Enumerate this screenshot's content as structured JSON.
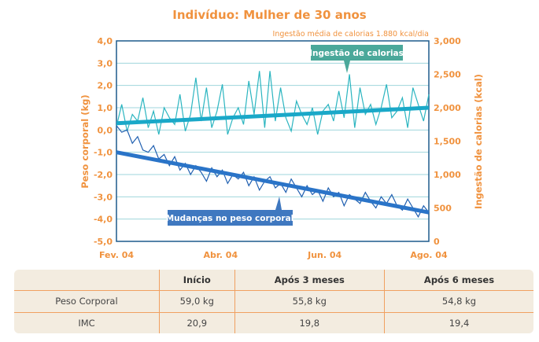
{
  "chart_data": {
    "type": "line",
    "title": "Indivíduo: Mulher de 30 anos",
    "subtitle": "Ingestão média de calorias 1.880 kcal/dia",
    "ylabel": "Peso corporal (kg)",
    "y2label": "Ingestão de calorias (kcal)",
    "ylim": [
      -5,
      4
    ],
    "y2lim": [
      0,
      3000
    ],
    "yticks": [
      "4,0",
      "3,0",
      "2,0",
      "1,0",
      "0,0",
      "-1,0",
      "-2,0",
      "-3,0",
      "-4,0",
      "-5,0"
    ],
    "y2ticks": [
      "3,000",
      "2,500",
      "2,000",
      "1,500",
      "1,000",
      "500",
      "0"
    ],
    "xticks": [
      "Fev. 04",
      "Abr. 04",
      "Jun. 04",
      "Ago. 04"
    ],
    "grid": true,
    "colors": {
      "calories": "#2bb5c0",
      "weight": "#1f5fb0",
      "calories_trend": "#1aa8c8",
      "weight_trend": "#2a74c8",
      "calorie_label_bg": "#4aa89a",
      "weight_label_bg": "#3f78c0",
      "axis_text": "#f0923e"
    },
    "series": [
      {
        "name": "Ingestão de calorias",
        "axis": "right",
        "values": [
          1720,
          2050,
          1650,
          1900,
          1800,
          2150,
          1700,
          1950,
          1600,
          2000,
          1850,
          1750,
          2200,
          1650,
          1900,
          2450,
          1800,
          2300,
          1700,
          1950,
          2350,
          1600,
          1850,
          2000,
          1750,
          2400,
          1900,
          2550,
          1700,
          2550,
          1800,
          2300,
          1850,
          1650,
          2100,
          1900,
          1750,
          2000,
          1600,
          1950,
          2050,
          1800,
          2250,
          1850,
          2500,
          1700,
          2300,
          1900,
          2050,
          1750,
          2000,
          2350,
          1850,
          1950,
          2150,
          1700,
          2300,
          2050,
          1800,
          2200
        ],
        "trend": [
          1767,
          2000
        ]
      },
      {
        "name": "Mudanças no peso corporal",
        "axis": "left",
        "values": [
          0.2,
          -0.1,
          0.0,
          -0.6,
          -0.3,
          -0.9,
          -1.0,
          -0.7,
          -1.3,
          -1.1,
          -1.6,
          -1.2,
          -1.8,
          -1.5,
          -2.0,
          -1.6,
          -1.9,
          -2.3,
          -1.7,
          -2.1,
          -1.8,
          -2.4,
          -2.0,
          -2.2,
          -1.9,
          -2.5,
          -2.1,
          -2.7,
          -2.3,
          -2.1,
          -2.6,
          -2.4,
          -2.8,
          -2.2,
          -2.6,
          -3.0,
          -2.5,
          -2.9,
          -2.7,
          -3.2,
          -2.6,
          -3.0,
          -2.8,
          -3.4,
          -2.9,
          -3.1,
          -3.3,
          -2.8,
          -3.2,
          -3.5,
          -3.0,
          -3.3,
          -2.9,
          -3.4,
          -3.6,
          -3.1,
          -3.5,
          -3.9,
          -3.4,
          -3.7
        ],
        "trend": [
          -1.0,
          -3.7
        ]
      }
    ]
  },
  "table": {
    "headers": [
      "",
      "Início",
      "Após 3 meses",
      "Após 6 meses"
    ],
    "rows": [
      [
        "Peso Corporal",
        "59,0 kg",
        "55,8 kg",
        "54,8 kg"
      ],
      [
        "IMC",
        "20,9",
        "19,8",
        "19,4"
      ]
    ]
  }
}
